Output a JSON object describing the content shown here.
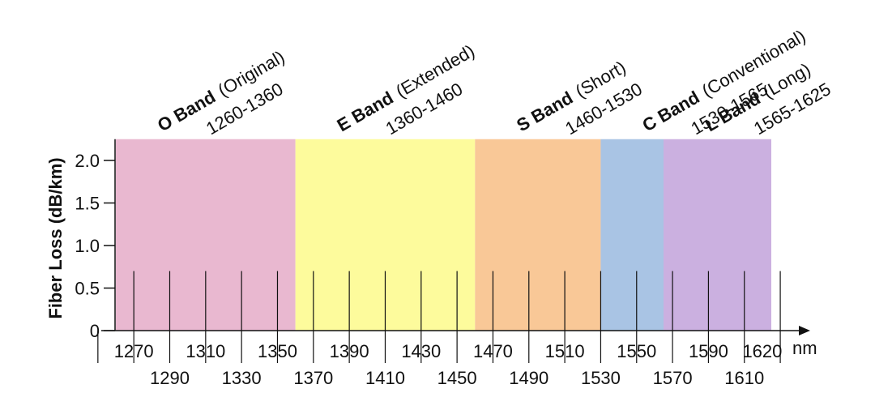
{
  "ylabel": "Fiber Loss (dB/km)",
  "xunit": "nm",
  "y_ticks": [
    "0",
    "0.5",
    "1.0",
    "1.5",
    "2.0"
  ],
  "y_tick_values": [
    0,
    0.5,
    1.0,
    1.5,
    2.0
  ],
  "ylim": [
    0,
    2.25
  ],
  "xlim": [
    1260,
    1625
  ],
  "x_axis_start": 1250,
  "x_axis_end": 1635,
  "x_ticks_upper": [
    1270,
    1310,
    1350,
    1390,
    1430,
    1470,
    1510,
    1550,
    1590,
    1620
  ],
  "x_ticks_lower": [
    1290,
    1330,
    1370,
    1410,
    1450,
    1490,
    1530,
    1570,
    1610
  ],
  "x_tick_upper_labels": [
    "1270",
    "1310",
    "1350",
    "1390",
    "1430",
    "1470",
    "1510",
    "1550",
    "1590",
    "1620"
  ],
  "x_tick_lower_labels": [
    "1290",
    "1330",
    "1370",
    "1410",
    "1450",
    "1490",
    "1530",
    "1570",
    "1610"
  ],
  "channel_lines": [
    1270,
    1290,
    1310,
    1330,
    1350,
    1370,
    1390,
    1410,
    1430,
    1450,
    1470,
    1490,
    1510,
    1530,
    1550,
    1570,
    1590,
    1610,
    1630
  ],
  "channel_line_height": 0.7,
  "bands": [
    {
      "name": "O Band",
      "desc": "(Original)",
      "range": "1260-1360",
      "start": 1260,
      "end": 1360,
      "color": "#e9b8d0"
    },
    {
      "name": "E Band",
      "desc": "(Extended)",
      "range": "1360-1460",
      "start": 1360,
      "end": 1460,
      "color": "#fdfb9c"
    },
    {
      "name": "S Band",
      "desc": "(Short)",
      "range": "1460-1530",
      "start": 1460,
      "end": 1530,
      "color": "#f9c897"
    },
    {
      "name": "C Band",
      "desc": "(Conventional)",
      "range": "1530-1565",
      "start": 1530,
      "end": 1565,
      "color": "#a9c4e4"
    },
    {
      "name": "L Band",
      "desc": "(Long)",
      "range": "1565-1625",
      "start": 1565,
      "end": 1625,
      "color": "#cbb0e0"
    }
  ]
}
